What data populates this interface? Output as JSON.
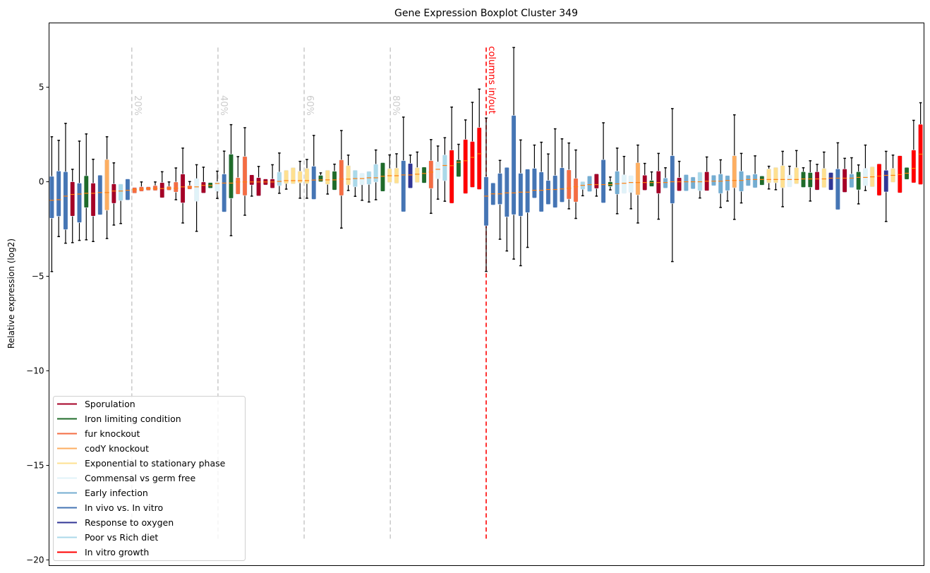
{
  "chart_data": {
    "type": "boxplot",
    "title": "Gene Expression Boxplot Cluster 349",
    "xlabel": "",
    "ylabel": "Relative expression (log2)",
    "ylim": [
      -20.3,
      8.4
    ],
    "xlim": [
      -0.4,
      126.5
    ],
    "yticks": [
      5,
      0,
      -5,
      -10,
      -15,
      -20
    ],
    "ytick_labels": [
      "5",
      "0",
      "−5",
      "−10",
      "−15",
      "−20"
    ],
    "grid": false,
    "legend_position": "lower-left",
    "categories": [
      {
        "name": "Sporulation",
        "color": "#a50026"
      },
      {
        "name": "Iron limiting condition",
        "color": "#1f6b2a"
      },
      {
        "name": "fur knockout",
        "color": "#f46d43"
      },
      {
        "name": "codY knockout",
        "color": "#fdae61"
      },
      {
        "name": "Exponential to stationary phase",
        "color": "#fee090"
      },
      {
        "name": "Commensal vs germ free",
        "color": "#e0f3f8"
      },
      {
        "name": "Early infection",
        "color": "#74add1"
      },
      {
        "name": "In vivo vs. In vitro",
        "color": "#4575b4"
      },
      {
        "name": "Response to oxygen",
        "color": "#313695"
      },
      {
        "name": "Poor vs Rich diet",
        "color": "#abd9e9"
      },
      {
        "name": "In vitro growth",
        "color": "#ff0000"
      }
    ],
    "median_color": "#ff7f0e",
    "box_fields": [
      "category_index",
      "whisker_low",
      "q1",
      "median",
      "q3",
      "whisker_high"
    ],
    "boxes": [
      [
        7,
        -4.75,
        -1.93,
        -0.98,
        0.29,
        2.38
      ],
      [
        7,
        -2.9,
        -1.83,
        -0.95,
        0.57,
        2.19
      ],
      [
        7,
        -3.25,
        -2.53,
        -0.76,
        0.53,
        3.09
      ],
      [
        0,
        -3.22,
        -1.82,
        -0.67,
        0.0,
        0.66
      ],
      [
        7,
        -3.1,
        -2.16,
        -0.65,
        -0.07,
        2.15
      ],
      [
        1,
        -3.07,
        -1.37,
        -0.61,
        0.32,
        2.53
      ],
      [
        0,
        -3.16,
        -1.82,
        -0.61,
        -0.07,
        1.19
      ],
      [
        7,
        -1.75,
        -1.75,
        -0.57,
        0.35,
        0.35
      ],
      [
        3,
        -3.0,
        -1.51,
        -0.57,
        1.18,
        2.38
      ],
      [
        0,
        -2.29,
        -1.14,
        -0.49,
        -0.11,
        1.0
      ],
      [
        9,
        -2.21,
        -1.0,
        -0.49,
        -0.12,
        -0.12
      ],
      [
        7,
        -0.97,
        -0.97,
        -0.45,
        0.15,
        0.15
      ],
      [
        2,
        -0.61,
        -0.61,
        -0.42,
        -0.3,
        -0.3
      ],
      [
        2,
        -0.51,
        -0.51,
        -0.39,
        -0.26,
        -0.01
      ],
      [
        2,
        -0.46,
        -0.46,
        -0.36,
        -0.26,
        -0.26
      ],
      [
        2,
        -0.47,
        -0.47,
        -0.36,
        -0.2,
        -0.01
      ],
      [
        0,
        -0.85,
        -0.85,
        -0.36,
        -0.04,
        0.53
      ],
      [
        2,
        -0.45,
        -0.45,
        -0.34,
        -0.24,
        -0.01
      ],
      [
        2,
        -0.95,
        -0.55,
        -0.34,
        -0.01,
        0.73
      ],
      [
        0,
        -2.18,
        -1.12,
        -0.27,
        0.41,
        1.78
      ],
      [
        2,
        -0.4,
        -0.4,
        -0.27,
        -0.2,
        0.01
      ],
      [
        5,
        -2.62,
        -1.03,
        -0.27,
        0.17,
        0.9
      ],
      [
        0,
        -0.6,
        -0.6,
        -0.19,
        -0.01,
        0.77
      ],
      [
        1,
        -0.34,
        -0.34,
        -0.2,
        -0.04,
        -0.04
      ],
      [
        5,
        -0.88,
        -0.5,
        -0.09,
        0.01,
        0.56
      ],
      [
        7,
        -1.6,
        -1.6,
        -0.07,
        0.41,
        1.62
      ],
      [
        1,
        -2.85,
        -0.88,
        -0.07,
        1.46,
        3.02
      ],
      [
        2,
        -0.66,
        -0.66,
        -0.01,
        0.22,
        1.33
      ],
      [
        2,
        -1.77,
        -0.73,
        -0.01,
        1.34,
        2.86
      ],
      [
        0,
        -0.76,
        -0.17,
        -0.01,
        0.37,
        0.37
      ],
      [
        0,
        -0.75,
        -0.75,
        -0.01,
        0.22,
        0.81
      ],
      [
        0,
        -0.17,
        -0.17,
        -0.01,
        0.15,
        0.15
      ],
      [
        0,
        -0.34,
        -0.34,
        -0.01,
        0.15,
        0.9
      ],
      [
        9,
        -0.61,
        -0.21,
        0.02,
        0.52,
        1.52
      ],
      [
        4,
        -0.39,
        -0.1,
        0.06,
        0.61,
        0.61
      ],
      [
        4,
        -0.11,
        -0.11,
        0.06,
        0.75,
        0.75
      ],
      [
        4,
        -0.87,
        -0.06,
        0.06,
        0.56,
        1.08
      ],
      [
        4,
        -0.87,
        -0.1,
        0.06,
        0.71,
        1.18
      ],
      [
        7,
        -0.93,
        -0.93,
        0.09,
        0.82,
        2.45
      ],
      [
        1,
        0.0,
        0.0,
        0.1,
        0.34,
        0.47
      ],
      [
        4,
        -0.65,
        -0.14,
        0.1,
        0.61,
        0.61
      ],
      [
        1,
        -0.44,
        -0.44,
        0.1,
        0.56,
        0.93
      ],
      [
        2,
        -2.45,
        -0.73,
        0.14,
        1.16,
        2.71
      ],
      [
        4,
        -0.46,
        -0.17,
        0.14,
        0.86,
        1.41
      ],
      [
        9,
        -0.77,
        -0.27,
        0.17,
        0.61,
        0.61
      ],
      [
        5,
        -0.98,
        -0.16,
        0.17,
        0.45,
        0.45
      ],
      [
        9,
        -1.07,
        -0.14,
        0.21,
        0.55,
        0.55
      ],
      [
        9,
        -0.95,
        -0.02,
        0.21,
        0.93,
        1.68
      ],
      [
        1,
        -0.51,
        -0.51,
        0.29,
        1.01,
        1.01
      ],
      [
        4,
        -0.04,
        -0.04,
        0.32,
        0.7,
        1.42
      ],
      [
        4,
        -0.09,
        -0.09,
        0.32,
        0.73,
        1.48
      ],
      [
        7,
        -1.59,
        -1.59,
        0.36,
        1.12,
        3.42
      ],
      [
        8,
        -0.34,
        -0.34,
        0.36,
        0.97,
        1.41
      ],
      [
        4,
        -0.04,
        -0.04,
        0.4,
        0.75,
        1.57
      ],
      [
        1,
        -0.07,
        -0.07,
        0.44,
        0.78,
        0.78
      ],
      [
        2,
        -1.67,
        -0.36,
        0.51,
        1.12,
        2.23
      ],
      [
        5,
        -0.92,
        0.16,
        0.66,
        1.05,
        1.89
      ],
      [
        9,
        -1.03,
        0.05,
        0.86,
        1.42,
        2.33
      ],
      [
        10,
        -1.14,
        -1.14,
        0.85,
        1.68,
        3.95
      ],
      [
        1,
        0.26,
        0.26,
        1.03,
        1.16,
        1.98
      ],
      [
        10,
        -0.63,
        -0.63,
        1.11,
        2.24,
        3.27
      ],
      [
        10,
        -0.3,
        -0.3,
        1.29,
        2.13,
        4.2
      ],
      [
        10,
        -0.41,
        -0.41,
        1.48,
        2.87,
        4.9
      ],
      [
        7,
        -4.74,
        -2.33,
        -0.76,
        0.26,
        3.37
      ],
      [
        7,
        -1.23,
        -1.23,
        -0.64,
        -0.06,
        -0.06
      ],
      [
        7,
        -3.04,
        -1.2,
        -0.64,
        0.45,
        1.13
      ],
      [
        7,
        -3.66,
        -1.86,
        -0.59,
        0.76,
        0.76
      ],
      [
        7,
        -4.09,
        -1.74,
        -0.59,
        3.51,
        7.1
      ],
      [
        7,
        -4.44,
        -1.82,
        -0.55,
        0.45,
        2.21
      ],
      [
        7,
        -3.47,
        -1.63,
        -0.55,
        0.67,
        0.67
      ],
      [
        7,
        -0.86,
        -0.86,
        -0.45,
        0.71,
        1.94
      ],
      [
        7,
        -1.59,
        -1.59,
        -0.45,
        0.52,
        2.09
      ],
      [
        7,
        -1.2,
        -1.2,
        -0.41,
        0.07,
        1.47
      ],
      [
        7,
        -1.37,
        -1.37,
        -0.41,
        0.33,
        2.8
      ],
      [
        7,
        -1.08,
        -1.08,
        -0.38,
        0.74,
        2.27
      ],
      [
        2,
        -1.43,
        -0.92,
        -0.34,
        0.63,
        2.05
      ],
      [
        2,
        -1.94,
        -1.07,
        -0.26,
        0.18,
        1.68
      ],
      [
        9,
        -0.74,
        -0.4,
        -0.19,
        0.01,
        0.01
      ],
      [
        6,
        -0.52,
        -0.52,
        -0.15,
        0.31,
        0.31
      ],
      [
        0,
        -0.76,
        -0.36,
        -0.15,
        0.42,
        0.42
      ],
      [
        7,
        -1.12,
        -1.12,
        -0.15,
        1.17,
        3.12
      ],
      [
        1,
        -0.43,
        -0.25,
        -0.15,
        0.0,
        0.25
      ],
      [
        6,
        -1.69,
        -0.66,
        -0.11,
        0.56,
        1.78
      ],
      [
        5,
        -0.61,
        -0.61,
        -0.08,
        0.37,
        1.34
      ],
      [
        5,
        -1.43,
        -0.57,
        -0.04,
        0.32,
        0.32
      ],
      [
        3,
        -2.18,
        -0.7,
        -0.04,
        1.01,
        1.94
      ],
      [
        0,
        -0.45,
        -0.45,
        -0.04,
        0.35,
        0.97
      ],
      [
        1,
        -0.25,
        -0.25,
        -0.04,
        0.07,
        0.52
      ],
      [
        0,
        -1.98,
        -0.62,
        -0.04,
        0.57,
        1.5
      ],
      [
        6,
        -0.34,
        -0.34,
        -0.04,
        0.2,
        0.74
      ],
      [
        7,
        -4.22,
        -1.15,
        0.0,
        1.38,
        3.87
      ],
      [
        0,
        -0.49,
        -0.49,
        0.0,
        0.22,
        1.08
      ],
      [
        6,
        -0.49,
        -0.49,
        0.0,
        0.38,
        0.38
      ],
      [
        6,
        -0.38,
        -0.38,
        0.0,
        0.25,
        0.25
      ],
      [
        9,
        -0.86,
        -0.47,
        0.0,
        0.51,
        0.51
      ],
      [
        0,
        -0.48,
        -0.48,
        0.03,
        0.53,
        1.31
      ],
      [
        6,
        -0.21,
        -0.21,
        0.03,
        0.35,
        0.35
      ],
      [
        6,
        -1.36,
        -0.62,
        0.03,
        0.41,
        1.16
      ],
      [
        6,
        -1.02,
        -0.47,
        0.07,
        0.33,
        0.33
      ],
      [
        3,
        -1.99,
        -0.32,
        0.07,
        1.38,
        3.54
      ],
      [
        6,
        -1.12,
        -0.51,
        0.07,
        0.56,
        1.5
      ],
      [
        6,
        -0.22,
        -0.22,
        0.12,
        0.35,
        0.35
      ],
      [
        6,
        -0.32,
        -0.32,
        0.12,
        0.41,
        1.37
      ],
      [
        1,
        -0.18,
        -0.18,
        0.12,
        0.31,
        0.31
      ],
      [
        4,
        -0.38,
        -0.06,
        0.12,
        0.68,
        0.82
      ],
      [
        4,
        -0.42,
        -0.06,
        0.12,
        0.76,
        0.76
      ],
      [
        4,
        -1.32,
        -0.32,
        0.12,
        0.86,
        1.61
      ],
      [
        5,
        -0.27,
        -0.27,
        0.12,
        0.35,
        0.82
      ],
      [
        4,
        -0.11,
        -0.11,
        0.12,
        0.75,
        1.65
      ],
      [
        1,
        -0.3,
        -0.3,
        0.15,
        0.53,
        0.74
      ],
      [
        1,
        -1.02,
        -0.3,
        0.15,
        0.49,
        1.11
      ],
      [
        0,
        -0.44,
        -0.44,
        0.15,
        0.53,
        0.92
      ],
      [
        4,
        -0.31,
        -0.31,
        0.15,
        0.71,
        1.57
      ],
      [
        8,
        -0.44,
        -0.44,
        0.19,
        0.49,
        0.49
      ],
      [
        7,
        -1.48,
        -1.48,
        0.19,
        0.68,
        2.06
      ],
      [
        0,
        -0.56,
        -0.56,
        0.19,
        0.68,
        1.24
      ],
      [
        6,
        -0.31,
        -0.31,
        0.19,
        0.41,
        1.27
      ],
      [
        1,
        -1.17,
        -0.43,
        0.23,
        0.53,
        0.89
      ],
      [
        5,
        -0.46,
        -0.21,
        0.23,
        0.71,
        1.94
      ],
      [
        4,
        -0.27,
        -0.27,
        0.26,
        0.8,
        0.8
      ],
      [
        10,
        -0.73,
        -0.73,
        0.3,
        0.95,
        0.95
      ],
      [
        8,
        -2.1,
        -0.54,
        0.34,
        0.61,
        1.61
      ],
      [
        4,
        -0.03,
        -0.03,
        0.34,
        0.71,
        1.41
      ],
      [
        10,
        -0.59,
        -0.59,
        0.38,
        1.38,
        1.38
      ],
      [
        1,
        0.12,
        0.12,
        0.45,
        0.76,
        0.76
      ],
      [
        10,
        -0.06,
        -0.06,
        0.71,
        1.68,
        3.25
      ],
      [
        10,
        -0.15,
        -0.15,
        1.46,
        3.04,
        4.18
      ]
    ],
    "reference_lines": [
      {
        "label": "20%",
        "x": 11.6,
        "color": "#cccccc"
      },
      {
        "label": "40%",
        "x": 24.1,
        "color": "#cccccc"
      },
      {
        "label": "60%",
        "x": 36.6,
        "color": "#cccccc"
      },
      {
        "label": "80%",
        "x": 49.1,
        "color": "#cccccc"
      },
      {
        "label": "columns in/out",
        "x": 63,
        "color": "#ff0000"
      }
    ],
    "reference_line_yrange": [
      -19.0,
      7.1
    ]
  }
}
